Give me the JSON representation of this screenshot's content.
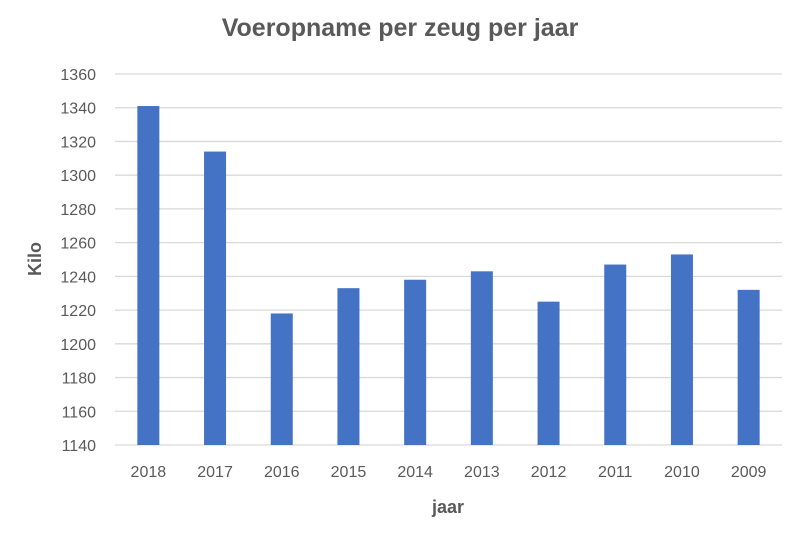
{
  "chart_data": {
    "type": "bar",
    "title": "Voeropname per zeug per jaar",
    "xlabel": "jaar",
    "ylabel": "Kilo",
    "categories": [
      "2018",
      "2017",
      "2016",
      "2015",
      "2014",
      "2013",
      "2012",
      "2011",
      "2010",
      "2009"
    ],
    "values": [
      1341,
      1314,
      1218,
      1233,
      1238,
      1243,
      1225,
      1247,
      1253,
      1232
    ],
    "ylim": [
      1140,
      1360
    ],
    "yticks": [
      1140,
      1160,
      1180,
      1200,
      1220,
      1240,
      1260,
      1280,
      1300,
      1320,
      1340,
      1360
    ],
    "grid": true,
    "bar_color": "#4472C4",
    "legend": "none"
  }
}
